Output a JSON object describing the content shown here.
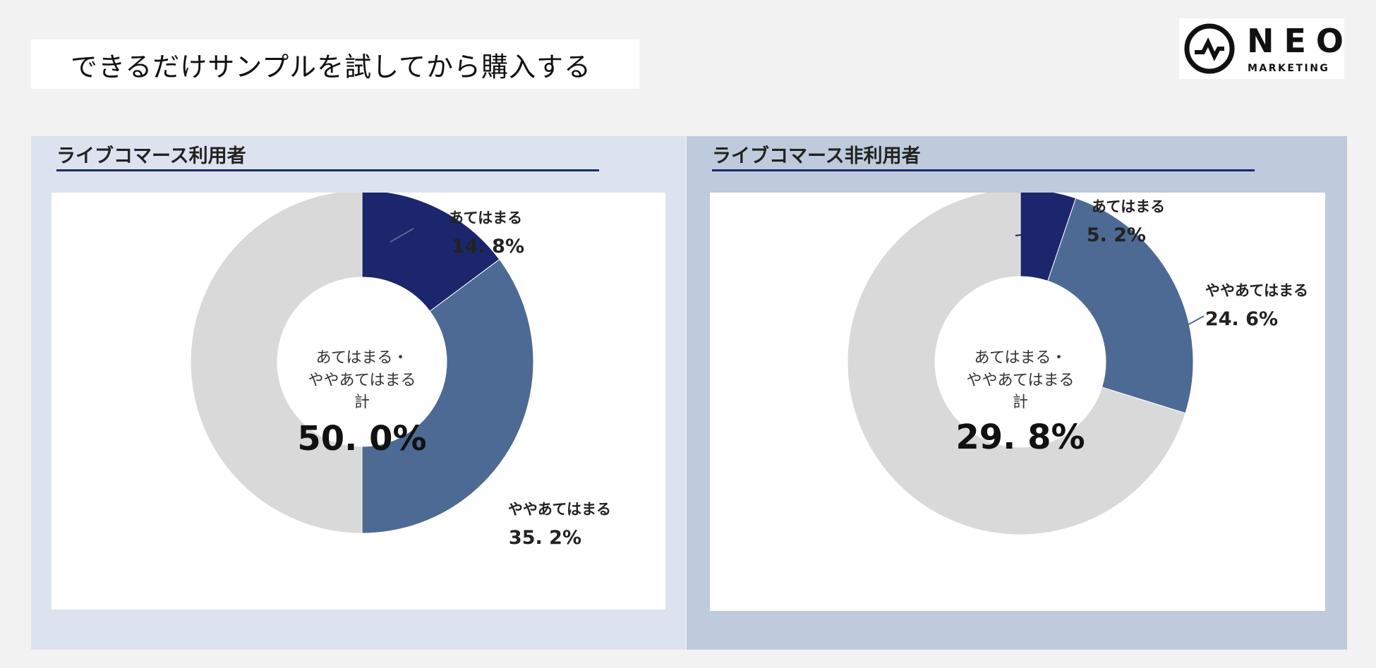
{
  "page": {
    "title": "できるだけサンプルを試してから購入する",
    "logo": {
      "word": "NEO",
      "sub": "MARKETING"
    }
  },
  "colors": {
    "page_bg": "#f2f2f2",
    "left_panel_bg": "#dce3ee",
    "right_panel_bg": "#bfcbdc",
    "rule": "#1b2a6b",
    "applies": "#1c266c",
    "somewhat": "#4d6a94",
    "rest": "#d9d9d9"
  },
  "chart_data": [
    {
      "type": "pie",
      "panel_title": "ライブコマース利用者",
      "slices": [
        {
          "label": "あてはまる",
          "value": 14.8,
          "display": "14. 8%",
          "color": "#1c266c"
        },
        {
          "label": "ややあてはまる",
          "value": 35.2,
          "display": "35. 2%",
          "color": "#4d6a94"
        },
        {
          "label": "",
          "value": 50.0,
          "display": "",
          "color": "#d9d9d9"
        }
      ],
      "center": {
        "line1": "あてはまる・",
        "line2": "ややあてはまる",
        "line3": "計",
        "value": "50. 0%"
      }
    },
    {
      "type": "pie",
      "panel_title": "ライブコマース非利用者",
      "slices": [
        {
          "label": "あてはまる",
          "value": 5.2,
          "display": "5. 2%",
          "color": "#1c266c"
        },
        {
          "label": "ややあてはまる",
          "value": 24.6,
          "display": "24. 6%",
          "color": "#4d6a94"
        },
        {
          "label": "",
          "value": 70.2,
          "display": "",
          "color": "#d9d9d9"
        }
      ],
      "center": {
        "line1": "あてはまる・",
        "line2": "ややあてはまる",
        "line3": "計",
        "value": "29. 8%"
      }
    }
  ]
}
